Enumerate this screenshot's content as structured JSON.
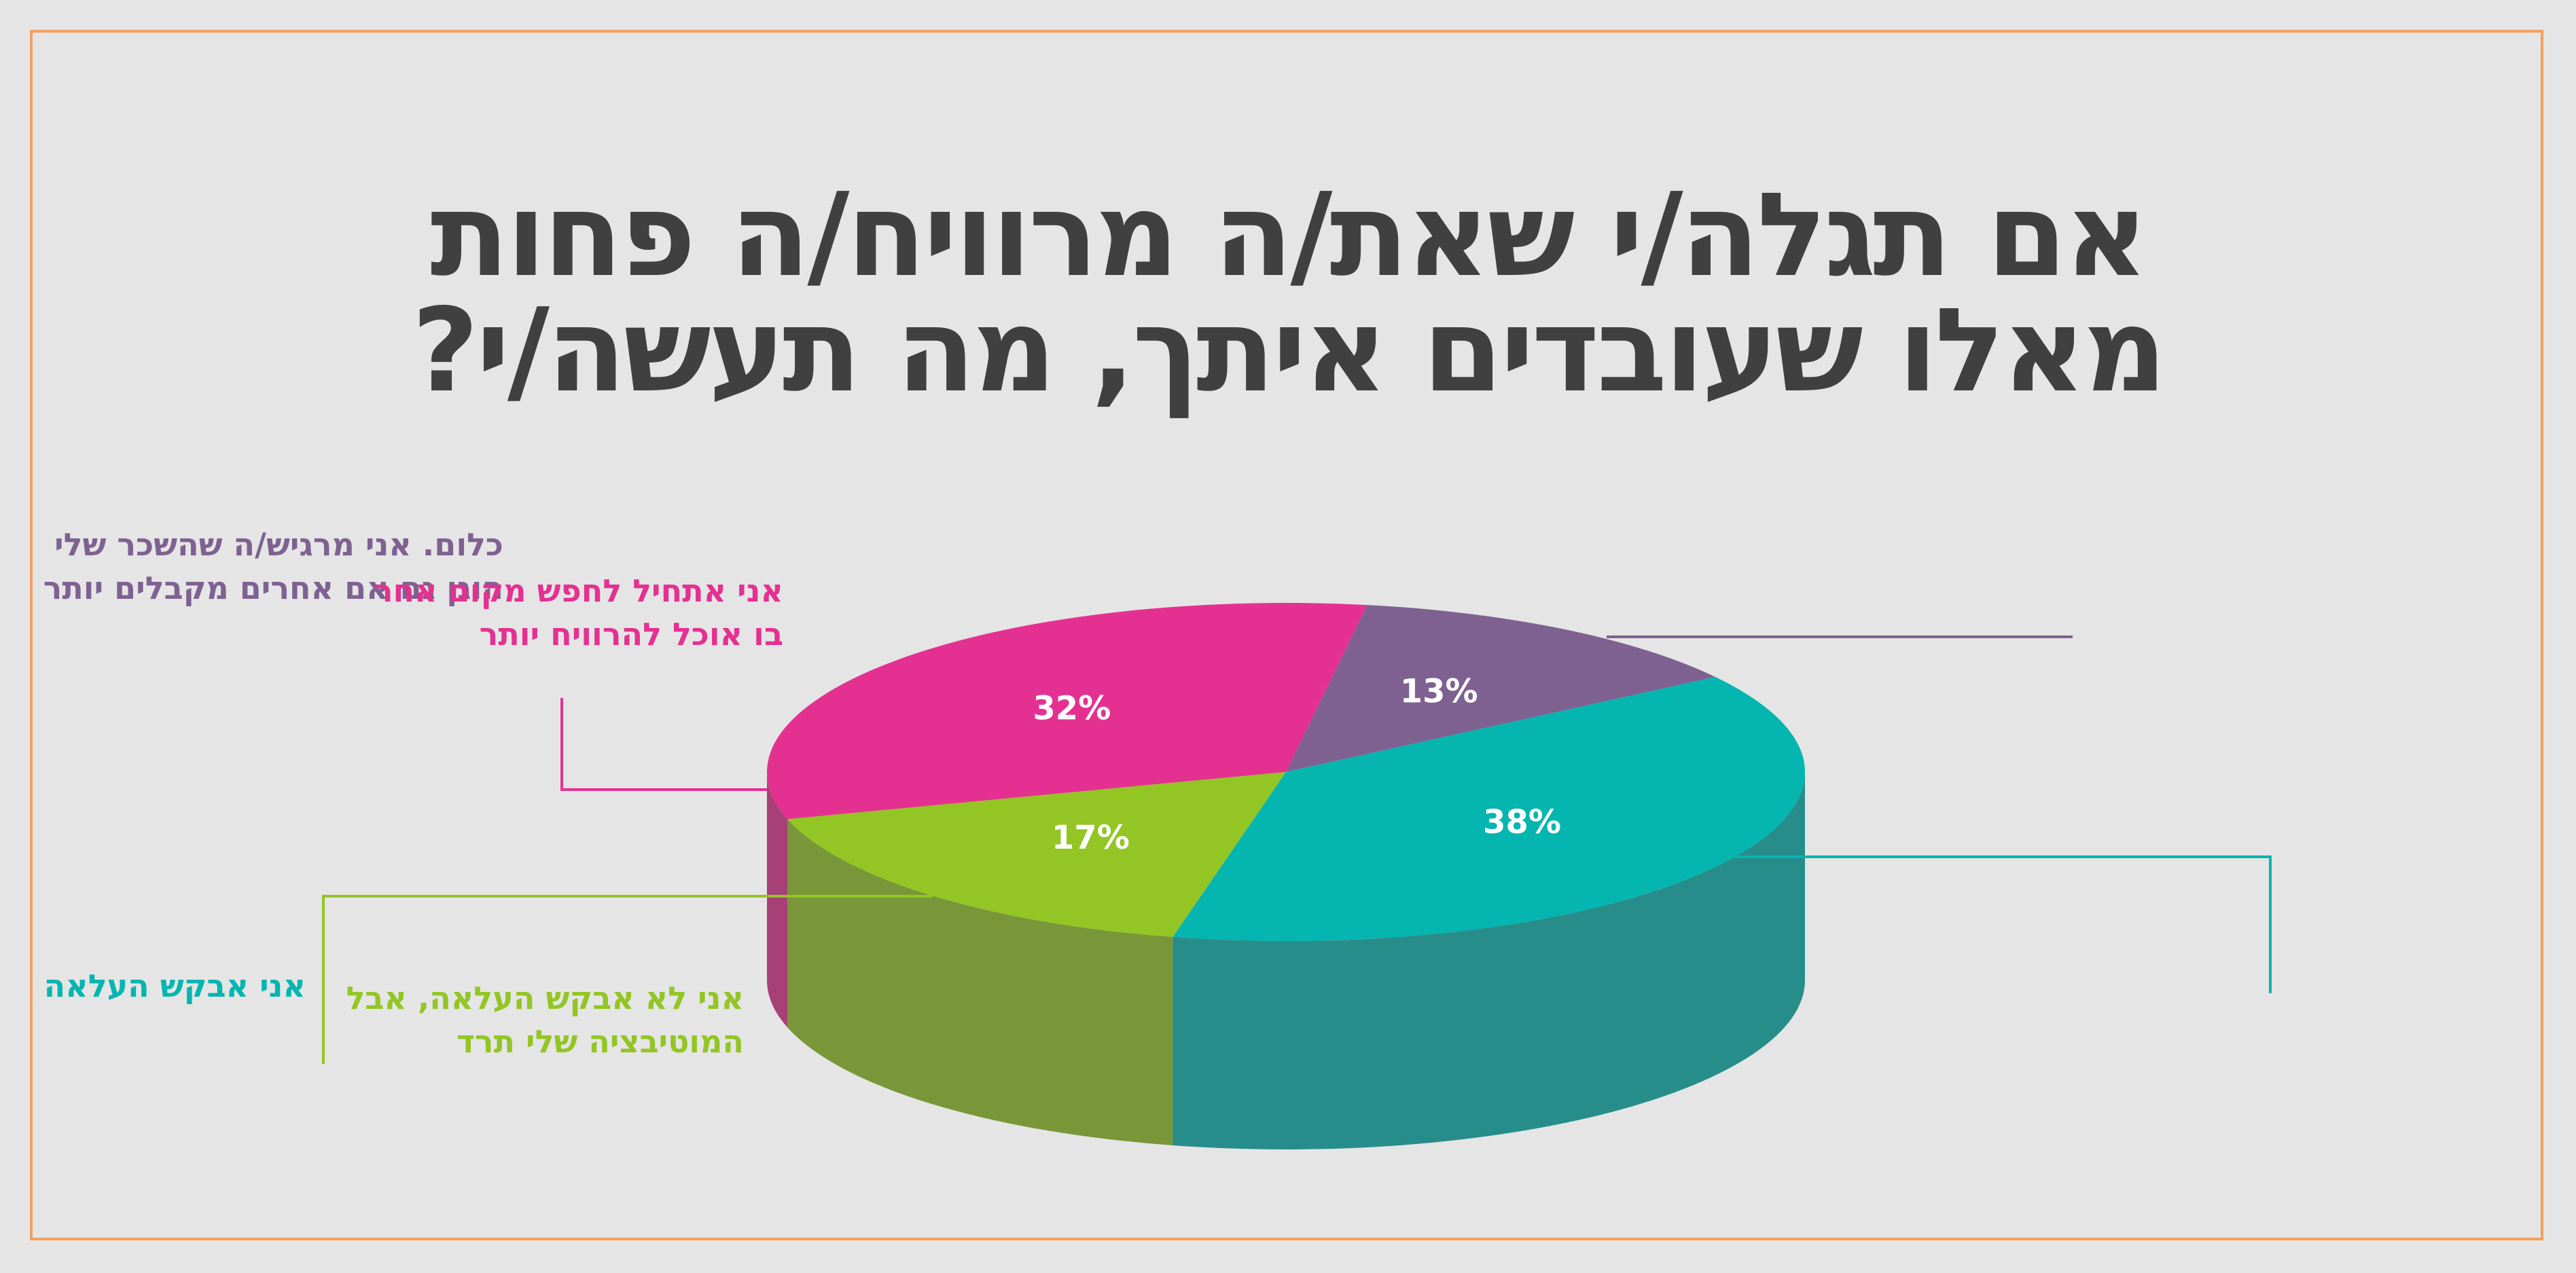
{
  "chart_data": {
    "type": "pie",
    "title": [
      "אם תגלה/י שאת/ה מרוויח/ה פחות",
      "מאלו שעובדים איתך, מה תעשה/י?"
    ],
    "categories": [
      "כלום. אני מרגיש/ה שהשכר שלי הוגן גם אם אחרים מקבלים יותר",
      "אני אבקש העלאה",
      "אני לא אבקש העלאה, אבל המוטיבציה שלי תרד",
      "אני אתחיל לחפש מקום אחר בו אוכל להרוויח יותר"
    ],
    "values": [
      13,
      38,
      17,
      32
    ],
    "value_labels": [
      "13%",
      "38%",
      "17%",
      "32%"
    ],
    "colors": [
      "#7e6191",
      "#05b5b0",
      "#93c524",
      "#e43191"
    ]
  }
}
